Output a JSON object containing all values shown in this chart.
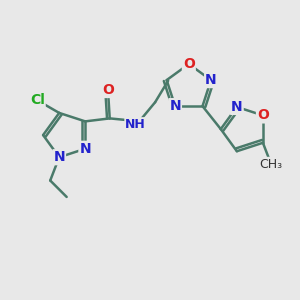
{
  "bg_color": "#e8e8e8",
  "bond_color": "#4a7a6a",
  "bond_width": 1.8,
  "atom_colors": {
    "Cl": "#22aa22",
    "O": "#dd2222",
    "N": "#2222cc",
    "C": "#4a7a6a",
    "default": "#333333"
  },
  "figsize": [
    3.0,
    3.0
  ],
  "dpi": 100
}
